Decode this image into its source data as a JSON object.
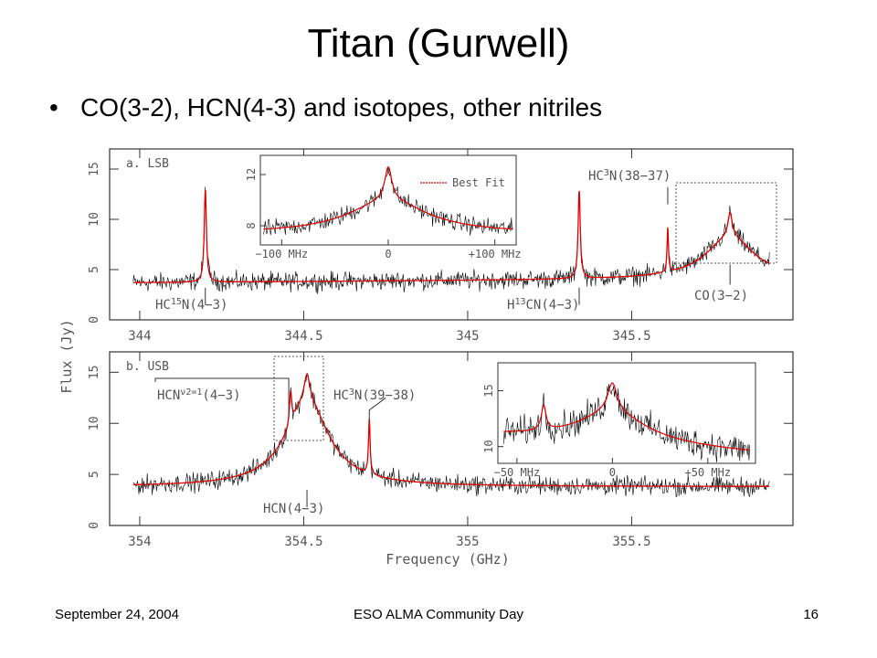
{
  "slide": {
    "title": "Titan (Gurwell)",
    "bullet": "CO(3-2), HCN(4-3) and isotopes, other nitriles"
  },
  "footer": {
    "date": "September 24, 2004",
    "event": "ESO ALMA Community Day",
    "page": "16"
  },
  "colors": {
    "spectrum": "#000000",
    "fit": "#e00000"
  },
  "chart_data": [
    {
      "type": "line",
      "panel_label": "a. LSB",
      "ylabel": "Flux (Jy)",
      "xlim": [
        343.95,
        345.95
      ],
      "ylim": [
        0,
        17
      ],
      "x_ticks": [
        344,
        344.5,
        345,
        345.5
      ],
      "y_ticks": [
        0,
        5,
        10,
        15
      ],
      "baseline_jy": 3.7,
      "lines": [
        {
          "label_parts": [
            "HC",
            "15",
            "N(4−3)"
          ],
          "x_ghz": 344.2,
          "peak_jy": 13.3
        },
        {
          "label_parts": [
            "H",
            "13",
            "CN(4−3)"
          ],
          "x_ghz": 345.34,
          "peak_jy": 13.0
        },
        {
          "label_parts": [
            "HC",
            "3",
            "N(38−37)"
          ],
          "x_ghz": 345.61,
          "peak_jy": 10.2
        },
        {
          "label_parts": [
            "CO(3−2)",
            "",
            ""
          ],
          "x_ghz": 345.8,
          "peak_jy": 14.0
        }
      ],
      "inset": {
        "xlim_mhz": [
          -120,
          120
        ],
        "ylim_jy": [
          6.5,
          13.5
        ],
        "x_ticks": [
          "−100 MHz",
          "0",
          "+100 MHz"
        ],
        "x_tick_values": [
          -100,
          0,
          100
        ],
        "y_ticks": [
          8,
          12
        ],
        "legend": "Best Fit"
      }
    },
    {
      "type": "line",
      "panel_label": "b. USB",
      "xlabel": "Frequency (GHz)",
      "xlim": [
        353.95,
        355.95
      ],
      "ylim": [
        0,
        17
      ],
      "x_ticks": [
        354,
        354.5,
        355,
        355.5
      ],
      "y_ticks": [
        0,
        5,
        10,
        15
      ],
      "baseline_jy": 3.8,
      "lines": [
        {
          "label_parts": [
            "HCN",
            "ν2=1",
            "(4−3)"
          ],
          "x_ghz": 354.46,
          "peak_jy": 13.5
        },
        {
          "label_parts": [
            "HCN(4−3)",
            "",
            ""
          ],
          "x_ghz": 354.51,
          "peak_jy": 16.5
        },
        {
          "label_parts": [
            "HC",
            "3",
            "N(39−38)"
          ],
          "x_ghz": 354.7,
          "peak_jy": 9.5
        }
      ],
      "inset": {
        "xlim_mhz": [
          -60,
          75
        ],
        "ylim_jy": [
          8.5,
          17.5
        ],
        "x_ticks": [
          "−50 MHz",
          "0",
          "+50 MHz"
        ],
        "x_tick_values": [
          -50,
          0,
          50
        ],
        "y_ticks": [
          10,
          15
        ]
      }
    }
  ]
}
